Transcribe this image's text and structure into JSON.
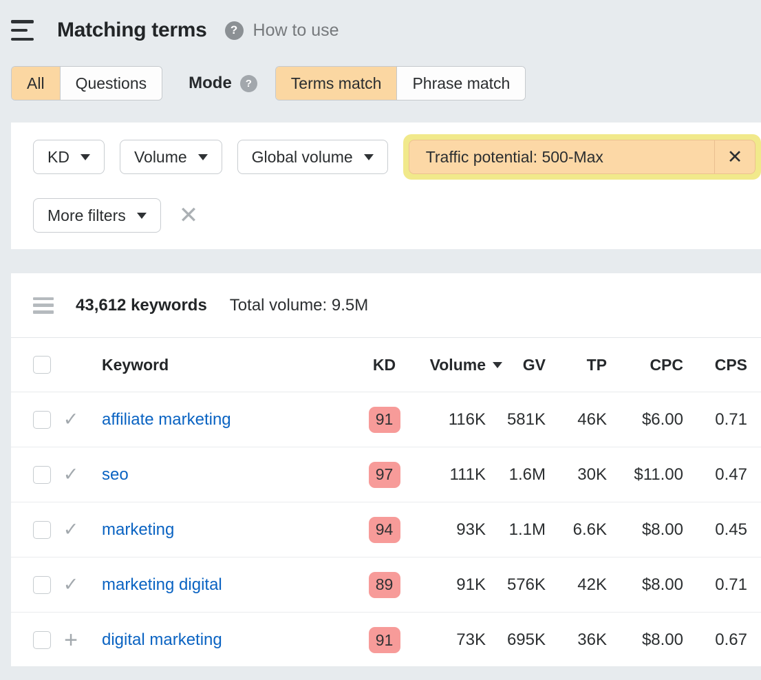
{
  "colors": {
    "page_bg": "#e7ebee",
    "accent_orange": "#fbd7a2",
    "highlight_yellow": "#f1e98b",
    "kd_badge": "#f79b99",
    "link_blue": "#0a63c2"
  },
  "header": {
    "title": "Matching terms",
    "help_glyph": "?",
    "how_to_use": "How to use"
  },
  "tabs": {
    "scope": [
      {
        "label": "All"
      },
      {
        "label": "Questions"
      }
    ],
    "mode_label": "Mode",
    "mode_help_glyph": "?",
    "mode": [
      {
        "label": "Terms match"
      },
      {
        "label": "Phrase match"
      }
    ]
  },
  "filters": {
    "kd_label": "KD",
    "volume_label": "Volume",
    "global_volume_label": "Global volume",
    "active_chip": {
      "label": "Traffic potential: 500-Max",
      "close_glyph": "✕"
    },
    "more_filters_label": "More filters",
    "clear_glyph": "✕"
  },
  "results": {
    "keywords_count": "43,612 keywords",
    "total_volume": "Total volume: 9.5M"
  },
  "table": {
    "headers": {
      "keyword": "Keyword",
      "kd": "KD",
      "volume": "Volume",
      "gv": "GV",
      "tp": "TP",
      "cpc": "CPC",
      "cps": "CPS"
    },
    "rows": [
      {
        "icon": "check",
        "icon_glyph": "✓",
        "keyword": "affiliate marketing",
        "kd": "91",
        "volume": "116K",
        "gv": "581K",
        "tp": "46K",
        "cpc": "$6.00",
        "cps": "0.71"
      },
      {
        "icon": "check",
        "icon_glyph": "✓",
        "keyword": "seo",
        "kd": "97",
        "volume": "111K",
        "gv": "1.6M",
        "tp": "30K",
        "cpc": "$11.00",
        "cps": "0.47"
      },
      {
        "icon": "check",
        "icon_glyph": "✓",
        "keyword": "marketing",
        "kd": "94",
        "volume": "93K",
        "gv": "1.1M",
        "tp": "6.6K",
        "cpc": "$8.00",
        "cps": "0.45"
      },
      {
        "icon": "check",
        "icon_glyph": "✓",
        "keyword": "marketing digital",
        "kd": "89",
        "volume": "91K",
        "gv": "576K",
        "tp": "42K",
        "cpc": "$8.00",
        "cps": "0.71"
      },
      {
        "icon": "plus",
        "icon_glyph": "+",
        "keyword": "digital marketing",
        "kd": "91",
        "volume": "73K",
        "gv": "695K",
        "tp": "36K",
        "cpc": "$8.00",
        "cps": "0.67"
      }
    ]
  }
}
